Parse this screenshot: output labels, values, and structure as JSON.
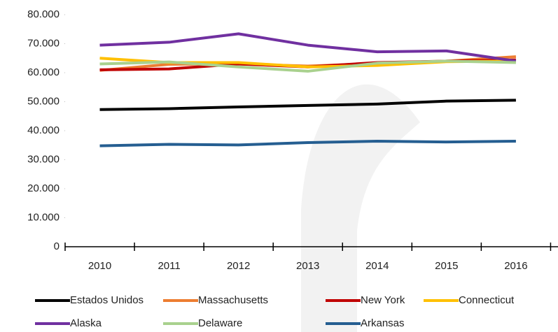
{
  "chart_data": {
    "type": "line",
    "categories": [
      "2010",
      "2011",
      "2012",
      "2013",
      "2014",
      "2015",
      "2016"
    ],
    "series": [
      {
        "name": "Estados Unidos",
        "color": "#000000",
        "values": [
          47300,
          47600,
          48200,
          48700,
          49200,
          50200,
          50500
        ]
      },
      {
        "name": "Massachusetts",
        "color": "#ed7d31",
        "values": [
          60800,
          62900,
          63000,
          62300,
          63200,
          64000,
          65500
        ]
      },
      {
        "name": "New York",
        "color": "#c00000",
        "values": [
          61000,
          61300,
          63000,
          62000,
          63500,
          64000,
          64400
        ]
      },
      {
        "name": "Connecticut",
        "color": "#ffc000",
        "values": [
          65000,
          63500,
          63500,
          62000,
          62500,
          63800,
          64000
        ]
      },
      {
        "name": "Alaska",
        "color": "#7030a0",
        "values": [
          69500,
          70500,
          73400,
          69500,
          67200,
          67500,
          64000
        ]
      },
      {
        "name": "Delaware",
        "color": "#a9d18e",
        "values": [
          63000,
          63700,
          62000,
          60500,
          63300,
          64000,
          63500
        ]
      },
      {
        "name": "Arkansas",
        "color": "#255e91",
        "values": [
          34800,
          35300,
          35100,
          35900,
          36400,
          36100,
          36400
        ]
      }
    ],
    "ylim": [
      0,
      80000
    ],
    "yticks": [
      0,
      {
        "value": 10000,
        "label": "10.000"
      },
      {
        "value": 20000,
        "label": "20.000"
      },
      {
        "value": 30000,
        "label": "30.000"
      },
      {
        "value": 40000,
        "label": "40.000"
      },
      {
        "value": 50000,
        "label": "50.000"
      },
      {
        "value": 60000,
        "label": "60.000"
      },
      {
        "value": 70000,
        "label": "70.000"
      },
      {
        "value": 80000,
        "label": "80.000"
      }
    ],
    "legend": "bottom"
  }
}
